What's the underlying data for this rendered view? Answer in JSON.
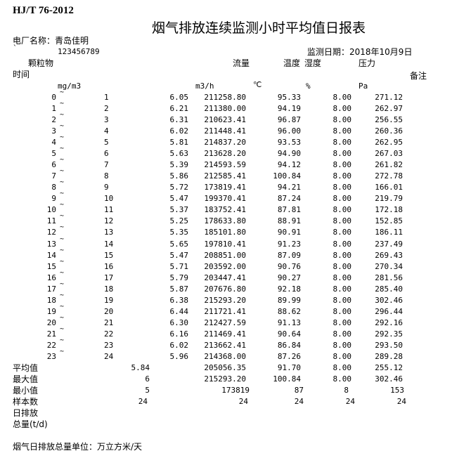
{
  "header": {
    "standard": "HJ/T 76-2012",
    "title": "烟气排放连续监测小时平均值日报表",
    "plant_label": "电厂名称：青岛佳明",
    "backtick": "`",
    "plant_code": "123456789",
    "date_label": "监测日期：2018年10月9日"
  },
  "columns": {
    "dust": "颗粒物",
    "flow": "流量",
    "temp": "温度",
    "humidity": "湿度",
    "pressure": "压力",
    "time": "时间",
    "remark": "备注",
    "units": {
      "dust": "mg/m3",
      "flow": "m3/h",
      "temp": "℃",
      "humidity": "%",
      "pressure": "Pa"
    }
  },
  "tilde": "~",
  "rows": [
    [
      "0",
      "1",
      "6.05",
      "211258.80",
      "95.33",
      "8.00",
      "271.12"
    ],
    [
      "1",
      "2",
      "6.21",
      "211380.00",
      "94.19",
      "8.00",
      "262.97"
    ],
    [
      "2",
      "3",
      "6.31",
      "210623.41",
      "96.87",
      "8.00",
      "256.55"
    ],
    [
      "3",
      "4",
      "6.02",
      "211448.41",
      "96.00",
      "8.00",
      "260.36"
    ],
    [
      "4",
      "5",
      "5.81",
      "214837.20",
      "93.53",
      "8.00",
      "262.95"
    ],
    [
      "5",
      "6",
      "5.63",
      "213628.20",
      "94.90",
      "8.00",
      "267.03"
    ],
    [
      "6",
      "7",
      "5.39",
      "214593.59",
      "94.12",
      "8.00",
      "261.82"
    ],
    [
      "7",
      "8",
      "5.86",
      "212585.41",
      "100.84",
      "8.00",
      "272.78"
    ],
    [
      "8",
      "9",
      "5.72",
      "173819.41",
      "94.21",
      "8.00",
      "166.01"
    ],
    [
      "9",
      "10",
      "5.47",
      "199370.41",
      "87.24",
      "8.00",
      "219.79"
    ],
    [
      "10",
      "11",
      "5.37",
      "183752.41",
      "87.81",
      "8.00",
      "172.18"
    ],
    [
      "11",
      "12",
      "5.25",
      "178633.80",
      "88.91",
      "8.00",
      "152.85"
    ],
    [
      "12",
      "13",
      "5.35",
      "185101.80",
      "90.91",
      "8.00",
      "186.11"
    ],
    [
      "13",
      "14",
      "5.65",
      "197810.41",
      "91.23",
      "8.00",
      "237.49"
    ],
    [
      "14",
      "15",
      "5.47",
      "208851.00",
      "87.09",
      "8.00",
      "269.43"
    ],
    [
      "15",
      "16",
      "5.71",
      "203592.00",
      "90.76",
      "8.00",
      "270.34"
    ],
    [
      "16",
      "17",
      "5.79",
      "203447.41",
      "90.27",
      "8.00",
      "281.56"
    ],
    [
      "17",
      "18",
      "5.87",
      "207676.80",
      "92.18",
      "8.00",
      "285.40"
    ],
    [
      "18",
      "19",
      "6.38",
      "215293.20",
      "89.99",
      "8.00",
      "302.46"
    ],
    [
      "19",
      "20",
      "6.44",
      "211721.41",
      "88.62",
      "8.00",
      "296.44"
    ],
    [
      "20",
      "21",
      "6.30",
      "212427.59",
      "91.13",
      "8.00",
      "292.16"
    ],
    [
      "21",
      "22",
      "6.16",
      "211469.41",
      "90.64",
      "8.00",
      "292.35"
    ],
    [
      "22",
      "23",
      "6.02",
      "213662.41",
      "86.84",
      "8.00",
      "293.50"
    ],
    [
      "23",
      "24",
      "5.96",
      "214368.00",
      "87.26",
      "8.00",
      "289.28"
    ]
  ],
  "summary": [
    {
      "label": "平均值",
      "values": [
        "5.84",
        "205056.35",
        "91.70",
        "8.00",
        "255.12"
      ]
    },
    {
      "label": "最大值",
      "values": [
        "6",
        "215293.20",
        "100.84",
        "8.00",
        "302.46"
      ]
    },
    {
      "label": "最小值",
      "values": [
        "5",
        "173819",
        "87",
        "8",
        "153"
      ]
    },
    {
      "label": "样本数",
      "values": [
        "24",
        "24",
        "24",
        "24",
        "24"
      ]
    }
  ],
  "daily_emission_label": "日排放",
  "total_label": "总量(t/d)",
  "footer": "烟气日排放总量单位：万立方米/天"
}
